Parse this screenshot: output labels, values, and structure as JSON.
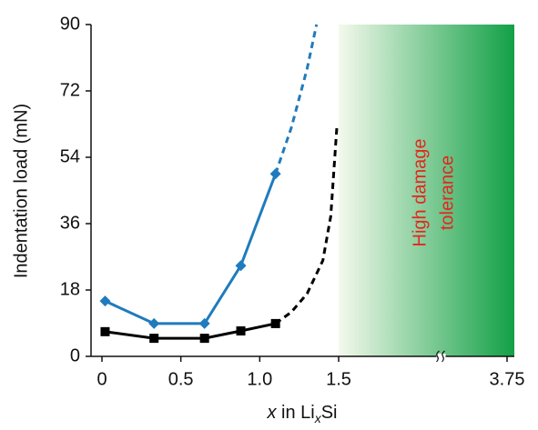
{
  "chart_data": {
    "type": "line",
    "ylabel": "Indentation load (mN)",
    "xlabel_parts": [
      "x",
      " in Li",
      "x",
      "Si"
    ],
    "ylim": [
      0,
      90
    ],
    "yticks": [
      0,
      18,
      36,
      54,
      72,
      90
    ],
    "xlim": [
      0,
      3.75
    ],
    "xticks": [
      0,
      0.5,
      {
        "value": 1,
        "label": "1.0"
      },
      1.5,
      3.75
    ],
    "axis_break": true,
    "shaded_region": {
      "from": 1.5,
      "to": 3.75,
      "colors": [
        "#f4f9ec",
        "#12a046"
      ]
    },
    "annotation": {
      "lines": [
        "High damage",
        "tolerance"
      ],
      "color": "#e5261c"
    },
    "series": [
      {
        "color": "#1f7bbd",
        "marker": "diamond",
        "dashed": false,
        "x": [
          0.02,
          0.33,
          0.65,
          0.88,
          1.1
        ],
        "values": [
          15,
          8.9,
          8.9,
          24.6,
          49.5
        ]
      },
      {
        "color": "#1f7bbd",
        "marker": "none",
        "dashed": true,
        "x": [
          1.1,
          1.2,
          1.3,
          1.36
        ],
        "values": [
          49.5,
          62,
          78,
          90
        ]
      },
      {
        "color": "#000000",
        "marker": "square",
        "dashed": false,
        "x": [
          0.02,
          0.33,
          0.65,
          0.88,
          1.1
        ],
        "values": [
          6.7,
          4.9,
          4.9,
          6.9,
          8.9
        ]
      },
      {
        "color": "#000000",
        "marker": "none",
        "dashed": true,
        "x": [
          1.1,
          1.2,
          1.3,
          1.4,
          1.45,
          1.49
        ],
        "values": [
          8.9,
          12,
          17,
          26,
          38,
          63
        ]
      }
    ]
  }
}
